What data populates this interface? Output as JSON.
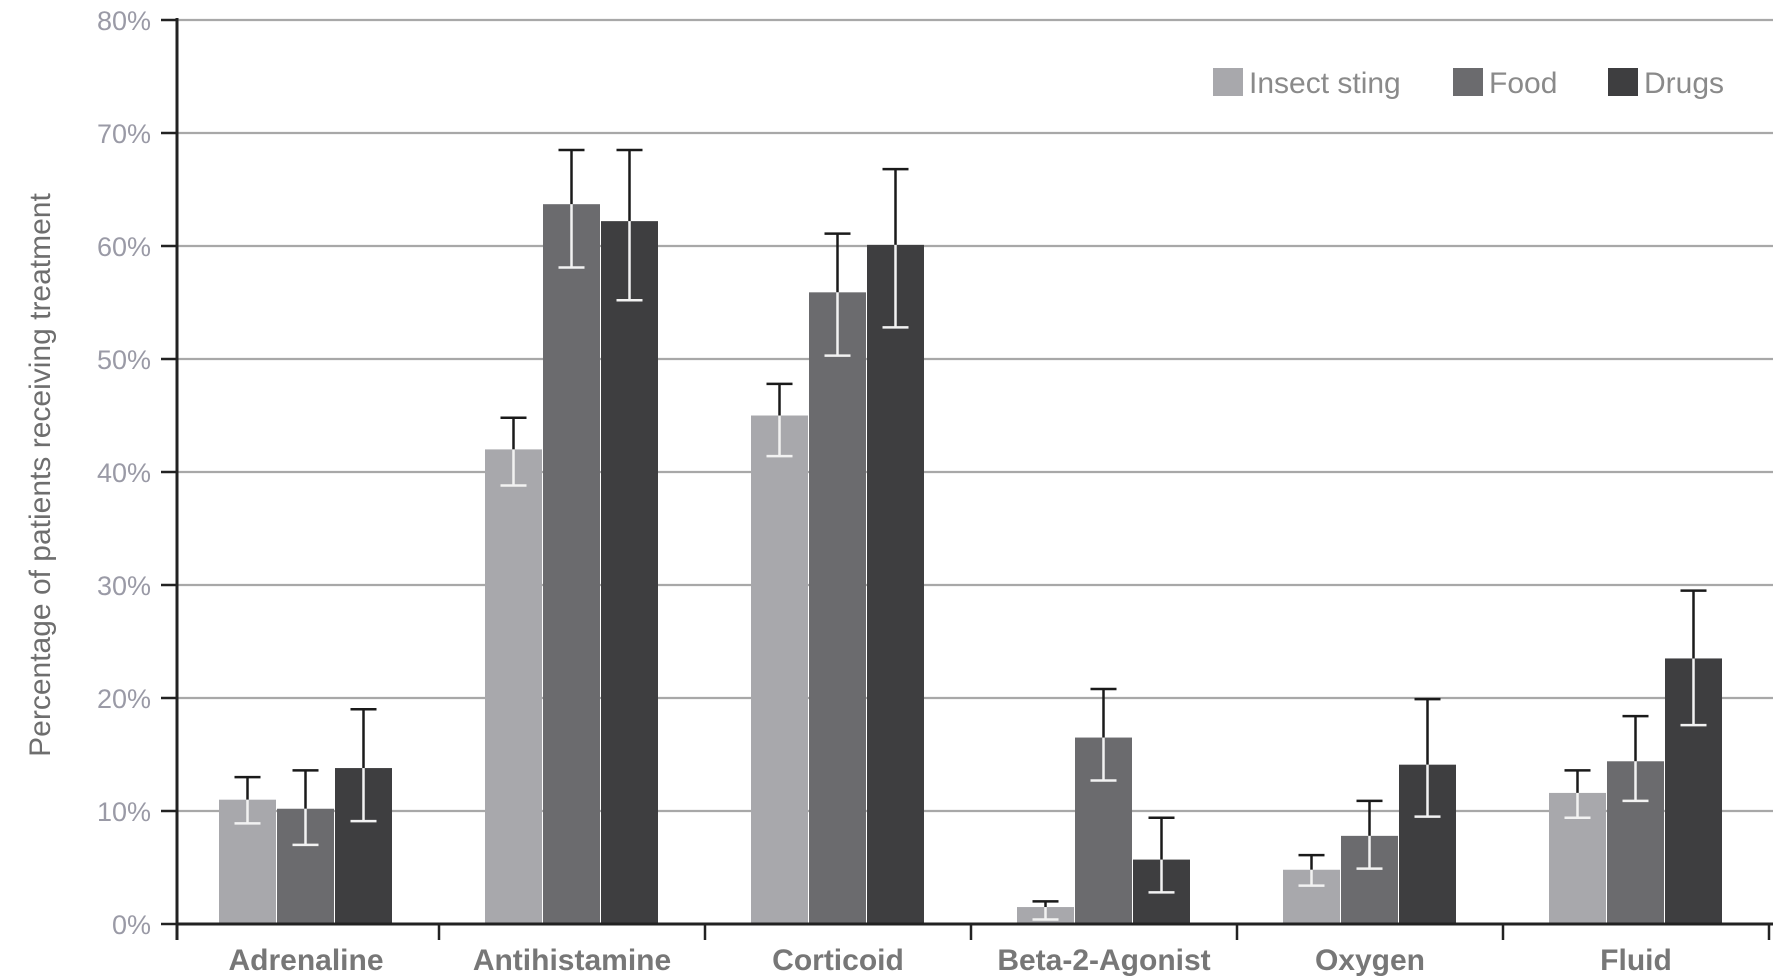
{
  "chart_data": {
    "type": "bar",
    "categories": [
      "Adrenaline",
      "Antihistamine",
      "Corticoid",
      "Beta-2-Agonist",
      "Oxygen",
      "Fluid"
    ],
    "series": [
      {
        "name": "Insect sting",
        "color": "#a8a8ac",
        "values": [
          11,
          42,
          45,
          1.5,
          4.8,
          11.6
        ],
        "err_low": [
          8.9,
          38.8,
          41.4,
          0.4,
          3.4,
          9.4
        ],
        "err_high": [
          13,
          44.8,
          47.8,
          2,
          6.1,
          13.6
        ]
      },
      {
        "name": "Food",
        "color": "#6b6b6e",
        "values": [
          10.2,
          63.7,
          55.9,
          16.5,
          7.8,
          14.4
        ],
        "err_low": [
          7,
          58.1,
          50.3,
          12.7,
          4.9,
          10.9
        ],
        "err_high": [
          13.6,
          68.5,
          61.1,
          20.8,
          10.9,
          18.4
        ]
      },
      {
        "name": "Drugs",
        "color": "#3e3e40",
        "values": [
          13.8,
          62.2,
          60.1,
          5.7,
          14.1,
          23.5
        ],
        "err_low": [
          9.1,
          55.2,
          52.8,
          2.8,
          9.5,
          17.6
        ],
        "err_high": [
          19,
          68.5,
          66.8,
          9.4,
          19.9,
          29.5
        ]
      }
    ],
    "y_tick_labels": [
      "0%",
      "10%",
      "20%",
      "30%",
      "40%",
      "50%",
      "60%",
      "70%",
      "80%"
    ],
    "ylabel": "Percentage of patients receiving treatment",
    "xlabel": "",
    "ylim": [
      0,
      80
    ],
    "grid": true,
    "error_bars": true,
    "legend_position": "top-right"
  }
}
